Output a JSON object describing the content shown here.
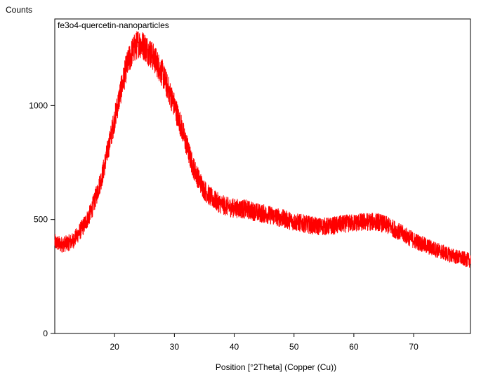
{
  "chart_data": {
    "type": "line",
    "title": "fe3o4-quercetin-nanoparticles",
    "xlabel": "Position [°2Theta] (Copper (Cu))",
    "ylabel": "Counts",
    "xlim": [
      10,
      79.5
    ],
    "ylim": [
      0,
      1380
    ],
    "xticks": [
      20,
      30,
      40,
      50,
      60,
      70
    ],
    "yticks": [
      0,
      500,
      1000
    ],
    "grid": false,
    "legend": "none",
    "series": [
      {
        "color": "#ff0000",
        "profile": {
          "x": [
            10,
            11,
            12,
            13,
            14,
            15,
            16,
            17,
            18,
            19,
            20,
            21,
            22,
            23,
            24,
            25,
            26,
            27,
            28,
            29,
            30,
            31,
            32,
            33,
            34,
            35,
            36,
            37,
            38,
            39,
            40,
            42,
            44,
            46,
            48,
            50,
            52,
            54,
            56,
            58,
            60,
            62,
            64,
            66,
            68,
            70,
            72,
            74,
            76,
            78,
            79.5
          ],
          "y": [
            400,
            390,
            395,
            405,
            440,
            480,
            530,
            610,
            700,
            820,
            940,
            1060,
            1170,
            1240,
            1275,
            1260,
            1230,
            1190,
            1140,
            1070,
            1000,
            920,
            830,
            740,
            680,
            630,
            600,
            580,
            565,
            555,
            550,
            545,
            530,
            520,
            505,
            490,
            480,
            470,
            470,
            480,
            485,
            490,
            490,
            470,
            440,
            410,
            385,
            365,
            345,
            330,
            320
          ]
        },
        "noise_amplitude": 45
      }
    ]
  }
}
